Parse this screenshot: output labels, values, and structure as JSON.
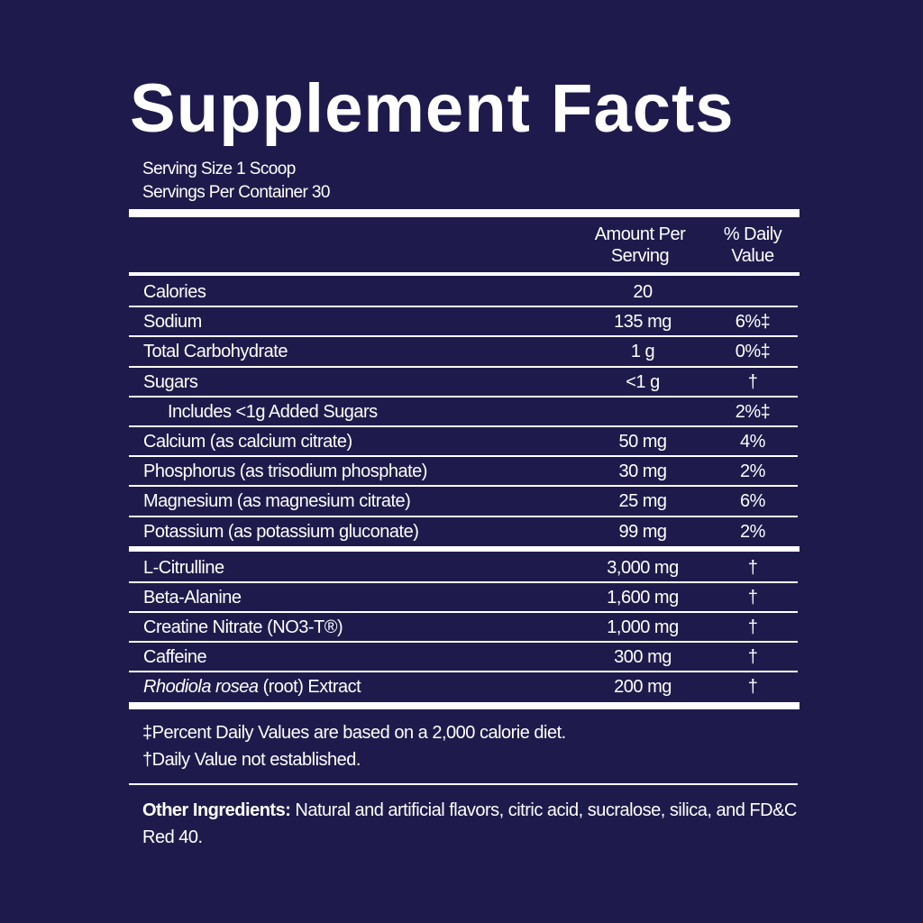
{
  "title": "Supplement Facts",
  "serving_size": "Serving Size 1 Scoop",
  "servings_per_container": "Servings Per Container 30",
  "headers": {
    "amount_line1": "Amount Per",
    "amount_line2": "Serving",
    "dv_line1": "% Daily",
    "dv_line2": "Value"
  },
  "nutrients": [
    {
      "name": "Calories",
      "amount": "20",
      "dv": ""
    },
    {
      "name": "Sodium",
      "amount": "135 mg",
      "dv": "6%‡"
    },
    {
      "name": "Total Carbohydrate",
      "amount": "1 g",
      "dv": "0%‡"
    },
    {
      "name": "Sugars",
      "amount": "<1 g",
      "dv": "†"
    },
    {
      "name": "Includes <1g Added Sugars",
      "amount": "",
      "dv": "2%‡"
    },
    {
      "name": "Calcium (as calcium citrate)",
      "amount": "50 mg",
      "dv": "4%"
    },
    {
      "name": "Phosphorus (as trisodium phosphate)",
      "amount": "30 mg",
      "dv": "2%"
    },
    {
      "name": "Magnesium (as magnesium citrate)",
      "amount": "25 mg",
      "dv": "6%"
    },
    {
      "name": "Potassium (as potassium gluconate)",
      "amount": "99 mg",
      "dv": "2%"
    }
  ],
  "ingredients": [
    {
      "name": "L-Citrulline",
      "amount": "3,000 mg",
      "dv": "†"
    },
    {
      "name": "Beta-Alanine",
      "amount": "1,600 mg",
      "dv": "†"
    },
    {
      "name": "Creatine Nitrate (NO3-T®)",
      "amount": "1,000 mg",
      "dv": "†"
    },
    {
      "name": "Caffeine",
      "amount": "300 mg",
      "dv": "†"
    },
    {
      "name_italic": "Rhodiola rosea",
      "name": " (root) Extract",
      "amount": "200 mg",
      "dv": "†"
    }
  ],
  "footnotes": [
    "‡Percent Daily Values are based on a 2,000 calorie diet.",
    "†Daily Value not established."
  ],
  "other_ingredients": {
    "label": "Other Ingredients:",
    "text": " Natural and artificial flavors, citric acid, sucralose, silica, and FD&C Red 40."
  },
  "colors": {
    "background": "#1e1b4c",
    "text": "#ffffff"
  }
}
